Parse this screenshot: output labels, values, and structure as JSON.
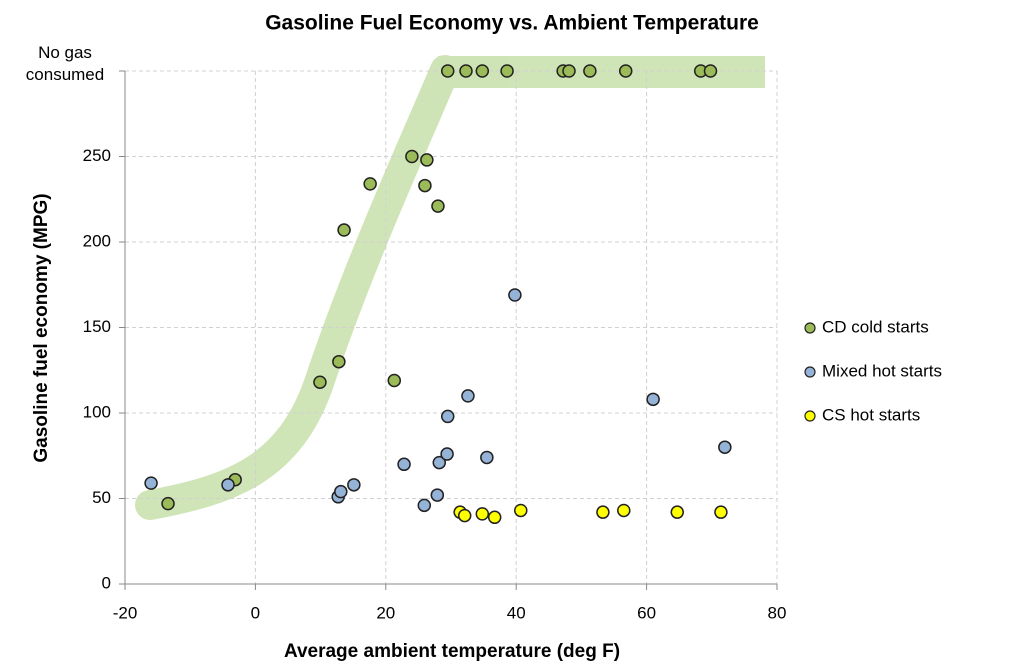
{
  "chart_data": {
    "type": "scatter",
    "title": "Gasoline Fuel Economy vs. Ambient Temperature",
    "xlabel": "Average ambient temperature (deg F)",
    "ylabel": "Gasoline fuel economy (MPG)",
    "xlim": [
      -20,
      80
    ],
    "xticks": [
      -20,
      0,
      20,
      40,
      60,
      80
    ],
    "ylim": [
      0,
      300
    ],
    "yticks": [
      0,
      50,
      100,
      150,
      200,
      250,
      {
        "value": 300,
        "label": "No gas consumed"
      }
    ],
    "grid": true,
    "legend": "right",
    "series": [
      {
        "name": "CD cold starts",
        "color": "#9bbb59",
        "x": [
          -13.4,
          -3.1,
          9.9,
          12.8,
          13.6,
          17.6,
          21.3,
          24.0,
          26.3,
          26.0,
          28.0,
          29.5,
          32.3,
          34.8,
          38.6,
          47.2,
          48.1,
          51.3,
          56.8,
          68.3,
          69.8
        ],
        "values": [
          47,
          61,
          118,
          130,
          207,
          234,
          119,
          250,
          248,
          233,
          221,
          300,
          300,
          300,
          300,
          300,
          300,
          300,
          300,
          300,
          300
        ]
      },
      {
        "name": "Mixed hot starts",
        "color": "#95b3d7",
        "x": [
          -16.0,
          -4.2,
          12.7,
          13.1,
          15.1,
          22.8,
          25.9,
          27.9,
          28.2,
          29.4,
          29.5,
          32.6,
          35.5,
          39.8,
          61.0,
          72.0
        ],
        "values": [
          59,
          58,
          51,
          54,
          58,
          70,
          46,
          52,
          71,
          76,
          98,
          110,
          74,
          169,
          108,
          80
        ]
      },
      {
        "name": "CS hot starts",
        "color": "#ffff00",
        "x": [
          31.4,
          32.1,
          34.8,
          36.7,
          40.7,
          53.3,
          56.5,
          64.7,
          71.4
        ],
        "values": [
          42,
          40,
          41,
          39,
          43,
          42,
          43,
          42,
          42
        ]
      }
    ]
  }
}
